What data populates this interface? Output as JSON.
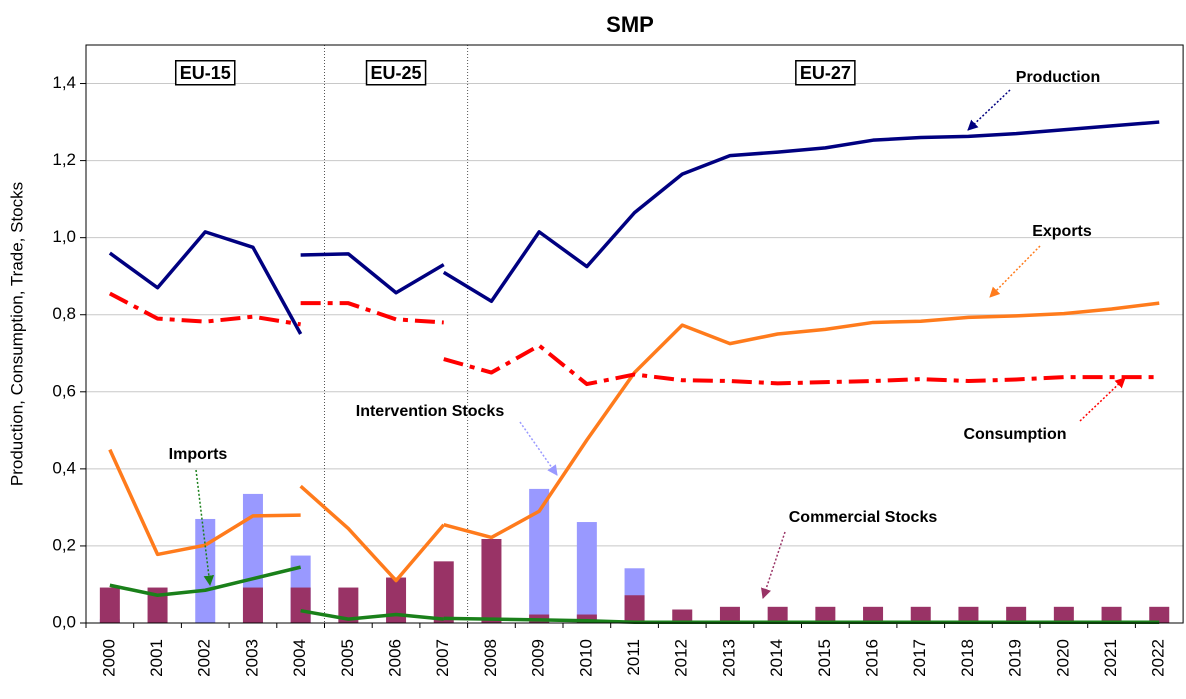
{
  "chart_data": {
    "type": "line",
    "title": "SMP",
    "y_label": "Production, Consumption, Trade, Stocks",
    "categories": [
      "2000",
      "2001",
      "2002",
      "2003",
      "2004",
      "2005",
      "2006",
      "2007",
      "2008",
      "2009",
      "2010",
      "2011",
      "2012",
      "2013",
      "2014",
      "2015",
      "2016",
      "2017",
      "2018",
      "2019",
      "2020",
      "2021",
      "2022"
    ],
    "ylim": [
      0,
      1.5
    ],
    "yticks": [
      {
        "value": 0,
        "label": "0,0"
      },
      {
        "value": 0.2,
        "label": "0,2"
      },
      {
        "value": 0.4,
        "label": "0,4"
      },
      {
        "value": 0.6,
        "label": "0,6"
      },
      {
        "value": 0.8,
        "label": "0,8"
      },
      {
        "value": 1.0,
        "label": "1,0"
      },
      {
        "value": 1.2,
        "label": "1,2"
      },
      {
        "value": 1.4,
        "label": "1,4"
      }
    ],
    "grid": true,
    "periods": [
      "EU-15",
      "EU-25",
      "EU-27"
    ],
    "bars": [
      {
        "name": "Intervention Stocks",
        "color": "#9999ff",
        "values": [
          0.01,
          null,
          0.27,
          0.335,
          0.175,
          null,
          null,
          null,
          null,
          0.348,
          0.262,
          0.142,
          null,
          null,
          null,
          null,
          null,
          null,
          null,
          null,
          null,
          null,
          null
        ]
      },
      {
        "name": "Commercial Stocks",
        "color": "#993366",
        "values": [
          0.092,
          0.092,
          null,
          0.092,
          0.092,
          0.092,
          0.118,
          0.16,
          0.218,
          0.022,
          0.022,
          0.072,
          0.035,
          0.042,
          0.042,
          0.042,
          0.042,
          0.042,
          0.042,
          0.042,
          0.042,
          0.042,
          0.042
        ]
      }
    ],
    "series": [
      {
        "name": "Production",
        "color": "#000080",
        "dash": false,
        "segments": [
          [
            0.96,
            0.87,
            1.015,
            0.975,
            0.75,
            null,
            null,
            null,
            null,
            null,
            null,
            null,
            null,
            null,
            null,
            null,
            null,
            null,
            null,
            null,
            null,
            null,
            null
          ],
          [
            null,
            null,
            null,
            null,
            0.955,
            0.958,
            0.857,
            0.93,
            null,
            null,
            null,
            null,
            null,
            null,
            null,
            null,
            null,
            null,
            null,
            null,
            null,
            null,
            null
          ],
          [
            null,
            null,
            null,
            null,
            null,
            null,
            null,
            0.91,
            0.835,
            1.015,
            0.925,
            1.065,
            1.165,
            1.213,
            1.222,
            1.233,
            1.253,
            1.26,
            1.263,
            1.27,
            1.28,
            1.29,
            1.3
          ]
        ]
      },
      {
        "name": "Exports",
        "color": "#ff7b1c",
        "dash": false,
        "segments": [
          [
            0.45,
            0.178,
            0.202,
            0.278,
            0.28,
            null,
            null,
            null,
            null,
            null,
            null,
            null,
            null,
            null,
            null,
            null,
            null,
            null,
            null,
            null,
            null,
            null,
            null
          ],
          [
            null,
            null,
            null,
            null,
            0.355,
            0.245,
            0.11,
            0.255,
            null,
            null,
            null,
            null,
            null,
            null,
            null,
            null,
            null,
            null,
            null,
            null,
            null,
            null,
            null
          ],
          [
            null,
            null,
            null,
            null,
            null,
            null,
            null,
            0.255,
            0.222,
            0.29,
            0.475,
            0.65,
            0.773,
            0.725,
            0.75,
            0.762,
            0.78,
            0.783,
            0.793,
            0.797,
            0.803,
            0.815,
            0.83
          ]
        ]
      },
      {
        "name": "Consumption",
        "color": "#ff0000",
        "dash": true,
        "segments": [
          [
            0.855,
            0.79,
            0.782,
            0.795,
            0.775,
            null,
            null,
            null,
            null,
            null,
            null,
            null,
            null,
            null,
            null,
            null,
            null,
            null,
            null,
            null,
            null,
            null,
            null
          ],
          [
            null,
            null,
            null,
            null,
            0.83,
            0.83,
            0.788,
            0.78,
            null,
            null,
            null,
            null,
            null,
            null,
            null,
            null,
            null,
            null,
            null,
            null,
            null,
            null,
            null
          ],
          [
            null,
            null,
            null,
            null,
            null,
            null,
            null,
            0.685,
            0.65,
            0.72,
            0.62,
            0.645,
            0.63,
            0.628,
            0.622,
            0.625,
            0.628,
            0.633,
            0.628,
            0.632,
            0.638,
            0.638,
            0.638
          ]
        ]
      },
      {
        "name": "Imports",
        "color": "#1a801a",
        "dash": false,
        "segments": [
          [
            0.098,
            0.072,
            0.085,
            0.115,
            0.145,
            null,
            null,
            null,
            null,
            null,
            null,
            null,
            null,
            null,
            null,
            null,
            null,
            null,
            null,
            null,
            null,
            null,
            null
          ],
          [
            null,
            null,
            null,
            null,
            0.032,
            0.01,
            0.022,
            0.01,
            null,
            null,
            null,
            null,
            null,
            null,
            null,
            null,
            null,
            null,
            null,
            null,
            null,
            null,
            null
          ],
          [
            null,
            null,
            null,
            null,
            null,
            null,
            null,
            0.012,
            0.01,
            0.008,
            0.006,
            0.002,
            0.002,
            0.002,
            0.002,
            0.002,
            0.002,
            0.002,
            0.002,
            0.002,
            0.002,
            0.002,
            0.002
          ]
        ]
      }
    ]
  }
}
